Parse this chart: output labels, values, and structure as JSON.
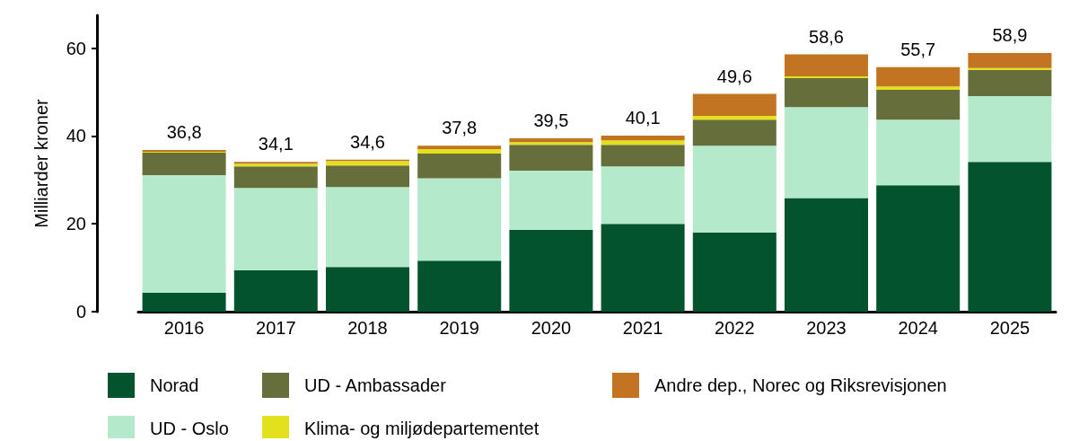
{
  "chart_data": {
    "type": "bar",
    "stacked": true,
    "ylabel": "Milliarder kroner",
    "categories": [
      "2016",
      "2017",
      "2018",
      "2019",
      "2020",
      "2021",
      "2022",
      "2023",
      "2024",
      "2025"
    ],
    "series": [
      {
        "name": "Norad",
        "color": "#03542e",
        "values": [
          4.3,
          9.4,
          10.2,
          11.6,
          18.6,
          20.0,
          18.0,
          25.9,
          28.8,
          34.1
        ]
      },
      {
        "name": "UD - Oslo",
        "color": "#b4eacb",
        "values": [
          26.8,
          18.8,
          18.2,
          18.8,
          13.5,
          13.1,
          19.8,
          20.7,
          14.9,
          15.0
        ]
      },
      {
        "name": "UD - Ambassader",
        "color": "#666e3b",
        "values": [
          5.1,
          4.9,
          4.9,
          5.6,
          5.9,
          4.9,
          5.9,
          6.6,
          6.8,
          5.9
        ]
      },
      {
        "name": "Klima- og miljødepartementet",
        "color": "#e3e11e",
        "values": [
          0.2,
          0.6,
          1.0,
          1.0,
          0.6,
          1.0,
          0.9,
          0.4,
          0.8,
          0.5
        ]
      },
      {
        "name": "Andre dep., Norec og Riksrevisjonen",
        "color": "#c27422",
        "values": [
          0.4,
          0.4,
          0.3,
          0.8,
          0.9,
          1.1,
          5.0,
          5.0,
          4.4,
          3.4
        ]
      }
    ],
    "totals": [
      "36,8",
      "34,1",
      "34,6",
      "37,8",
      "39,5",
      "40,1",
      "49,6",
      "58,6",
      "55,7",
      "58,9"
    ],
    "ylim": [
      0,
      67.5
    ],
    "yticks": [
      0,
      20,
      40,
      60
    ],
    "grid": false,
    "legend": "bottom"
  }
}
